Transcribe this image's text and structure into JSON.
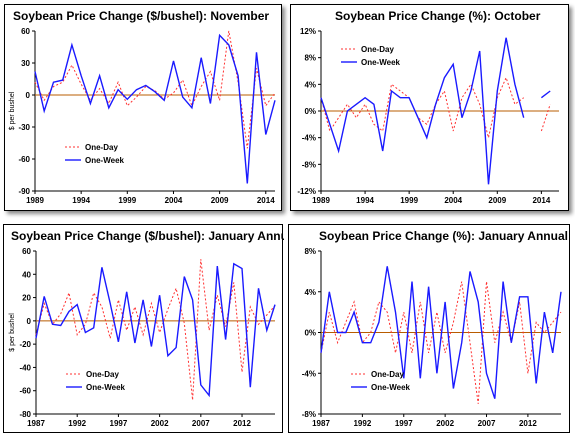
{
  "colors": {
    "one_day": "#ff3030",
    "one_week": "#1a1aff",
    "zero_line": "#b85c00",
    "frame": "#000000"
  },
  "chart_data": [
    {
      "id": "p1",
      "type": "line",
      "title": "Soybean Price Change ($/bushel): November",
      "ylabel": "$ per bushel",
      "ylim": [
        -90,
        60
      ],
      "yticks": [
        -90,
        -60,
        -30,
        0,
        30,
        60
      ],
      "ytick_labels": [
        "-90",
        "-60",
        "-30",
        "0",
        "30",
        "60"
      ],
      "xlim": [
        1989,
        2015
      ],
      "xticks": [
        1989,
        1994,
        1999,
        2004,
        2009,
        2014
      ],
      "xtick_labels": [
        "1989",
        "1994",
        "1999",
        "2004",
        "2009",
        "2014"
      ],
      "legend": {
        "position": "lower-left"
      },
      "series": [
        {
          "name": "One-Day",
          "color": "#ff3030",
          "dashed": true,
          "x": [
            1989,
            1990,
            1991,
            1992,
            1993,
            1994,
            1995,
            1996,
            1997,
            1998,
            1999,
            2000,
            2001,
            2002,
            2003,
            2004,
            2005,
            2006,
            2007,
            2008,
            2009,
            2010,
            2011,
            2012,
            2013,
            2014,
            2015
          ],
          "y": [
            12,
            -5,
            8,
            12,
            28,
            10,
            -5,
            6,
            -8,
            12,
            -10,
            -2,
            8,
            4,
            -4,
            2,
            14,
            -10,
            8,
            22,
            -5,
            60,
            12,
            -50,
            25,
            -10,
            2
          ]
        },
        {
          "name": "One-Week",
          "color": "#1a1aff",
          "dashed": false,
          "x": [
            1989,
            1990,
            1991,
            1992,
            1993,
            1994,
            1995,
            1996,
            1997,
            1998,
            1999,
            2000,
            2001,
            2002,
            2003,
            2004,
            2005,
            2006,
            2007,
            2008,
            2009,
            2010,
            2011,
            2012,
            2013,
            2014,
            2015
          ],
          "y": [
            22,
            -15,
            12,
            14,
            47,
            18,
            -8,
            18,
            -12,
            5,
            -4,
            5,
            9,
            3,
            -5,
            32,
            -2,
            -12,
            35,
            -8,
            56,
            47,
            18,
            -83,
            40,
            -37,
            -5
          ]
        }
      ]
    },
    {
      "id": "p2",
      "type": "line",
      "title": "Soybean Price Change (%): October",
      "ylabel": "",
      "ylim": [
        -12,
        12
      ],
      "yticks": [
        -12,
        -8,
        -4,
        0,
        4,
        8,
        12
      ],
      "ytick_labels": [
        "-12%",
        "-8%",
        "-4%",
        "0%",
        "4%",
        "8%",
        "12%"
      ],
      "xlim": [
        1989,
        2016
      ],
      "xticks": [
        1989,
        1994,
        1999,
        2004,
        2009,
        2014
      ],
      "xtick_labels": [
        "1989",
        "1994",
        "1999",
        "2004",
        "2009",
        "2014"
      ],
      "legend": {
        "position": "top-left"
      },
      "series": [
        {
          "name": "One-Day",
          "color": "#ff3030",
          "dashed": true,
          "x": [
            1989,
            1990,
            1991,
            1992,
            1993,
            1994,
            1995,
            1996,
            1997,
            1998,
            1999,
            2000,
            2001,
            2002,
            2003,
            2004,
            2005,
            2006,
            2007,
            2008,
            2009,
            2010,
            2011,
            2012,
            2014,
            2015
          ],
          "y": [
            2,
            -3,
            -1,
            1,
            -1,
            1,
            -2,
            -3,
            4,
            3,
            2,
            -1,
            -2,
            1,
            3,
            -3,
            2,
            4,
            1,
            -4,
            2,
            5,
            1,
            2,
            -3,
            1
          ]
        },
        {
          "name": "One-Week",
          "color": "#1a1aff",
          "dashed": false,
          "x": [
            1989,
            1990,
            1991,
            1992,
            1993,
            1994,
            1995,
            1996,
            1997,
            1998,
            1999,
            2000,
            2001,
            2002,
            2003,
            2004,
            2005,
            2006,
            2007,
            2008,
            2009,
            2010,
            2011,
            2012,
            2014,
            2015
          ],
          "y": [
            2,
            -2,
            -6,
            0,
            1,
            2,
            1,
            -6,
            3,
            2,
            2,
            -1,
            -4,
            1,
            5,
            7,
            -1,
            3,
            9,
            -11,
            3,
            11,
            4,
            -1,
            2,
            3
          ]
        }
      ]
    },
    {
      "id": "p3",
      "type": "line",
      "title": "Soybean Price Change ($/bushel): January Annual",
      "ylabel": "$ per bushel",
      "ylim": [
        -80,
        60
      ],
      "yticks": [
        -80,
        -60,
        -40,
        -20,
        0,
        20,
        40,
        60
      ],
      "ytick_labels": [
        "-80",
        "-60",
        "-40",
        "-20",
        "0",
        "20",
        "40",
        "60"
      ],
      "xlim": [
        1987,
        2016
      ],
      "xticks": [
        1987,
        1992,
        1997,
        2002,
        2007,
        2012
      ],
      "xtick_labels": [
        "1987",
        "1992",
        "1997",
        "2002",
        "2007",
        "2012"
      ],
      "legend": {
        "position": "lower-left"
      },
      "series": [
        {
          "name": "One-Day",
          "color": "#ff3030",
          "dashed": true,
          "x": [
            1987,
            1988,
            1989,
            1990,
            1991,
            1992,
            1993,
            1994,
            1995,
            1996,
            1997,
            1998,
            1999,
            2000,
            2001,
            2002,
            2003,
            2004,
            2005,
            2006,
            2007,
            2008,
            2009,
            2010,
            2011,
            2012,
            2013,
            2014,
            2015,
            2016
          ],
          "y": [
            -12,
            15,
            -3,
            6,
            24,
            -12,
            -3,
            24,
            12,
            -15,
            18,
            -8,
            12,
            -12,
            15,
            -10,
            10,
            28,
            -2,
            -68,
            53,
            -8,
            22,
            -5,
            33,
            -44,
            12,
            -3,
            5,
            13
          ]
        },
        {
          "name": "One-Week",
          "color": "#1a1aff",
          "dashed": false,
          "x": [
            1987,
            1988,
            1989,
            1990,
            1991,
            1992,
            1993,
            1994,
            1995,
            1996,
            1997,
            1998,
            1999,
            2000,
            2001,
            2002,
            2003,
            2004,
            2005,
            2006,
            2007,
            2008,
            2009,
            2010,
            2011,
            2012,
            2013,
            2014,
            2015,
            2016
          ],
          "y": [
            -15,
            21,
            -3,
            -4,
            8,
            14,
            -10,
            -6,
            46,
            15,
            -18,
            25,
            -19,
            18,
            -22,
            22,
            -30,
            -23,
            38,
            18,
            -55,
            -64,
            47,
            -16,
            49,
            45,
            -57,
            28,
            -8,
            14
          ]
        }
      ]
    },
    {
      "id": "p4",
      "type": "line",
      "title": "Soybean Price Change (%): January Annual",
      "ylabel": "",
      "ylim": [
        -8,
        8
      ],
      "yticks": [
        -8,
        -4,
        0,
        4,
        8
      ],
      "ytick_labels": [
        "-8%",
        "-4%",
        "0%",
        "4%",
        "8%"
      ],
      "xlim": [
        1987,
        2016
      ],
      "xticks": [
        1987,
        1992,
        1997,
        2002,
        2007,
        2012
      ],
      "xtick_labels": [
        "1987",
        "1992",
        "1997",
        "2002",
        "2007",
        "2012"
      ],
      "legend": {
        "position": "lower-left"
      },
      "series": [
        {
          "name": "One-Day",
          "color": "#ff3030",
          "dashed": true,
          "x": [
            1987,
            1988,
            1989,
            1990,
            1991,
            1992,
            1993,
            1994,
            1995,
            1996,
            1997,
            1998,
            1999,
            2000,
            2001,
            2002,
            2003,
            2004,
            2005,
            2006,
            2007,
            2008,
            2009,
            2010,
            2011,
            2012,
            2013,
            2014,
            2015,
            2016
          ],
          "y": [
            -2,
            2,
            -1,
            1,
            3,
            -1,
            0,
            3,
            2,
            -2,
            2,
            -2,
            3,
            -2,
            2,
            -2,
            1,
            5,
            -1,
            -7,
            5,
            -1,
            2,
            -1,
            3,
            -4,
            1,
            0,
            1,
            2
          ]
        },
        {
          "name": "One-Week",
          "color": "#1a1aff",
          "dashed": false,
          "x": [
            1987,
            1988,
            1989,
            1990,
            1991,
            1992,
            1993,
            1994,
            1995,
            1996,
            1997,
            1998,
            1999,
            2000,
            2001,
            2002,
            2003,
            2004,
            2005,
            2006,
            2007,
            2008,
            2009,
            2010,
            2011,
            2012,
            2013,
            2014,
            2015,
            2016
          ],
          "y": [
            -2,
            4,
            0,
            0,
            2,
            -1,
            -1,
            1,
            6.5,
            2,
            -4.5,
            5,
            -4.5,
            4.5,
            -4,
            3,
            -5.5,
            -1,
            6,
            3,
            -4,
            -6.5,
            5,
            -1,
            3.5,
            3.5,
            -5,
            2,
            -2,
            4
          ]
        }
      ]
    }
  ]
}
